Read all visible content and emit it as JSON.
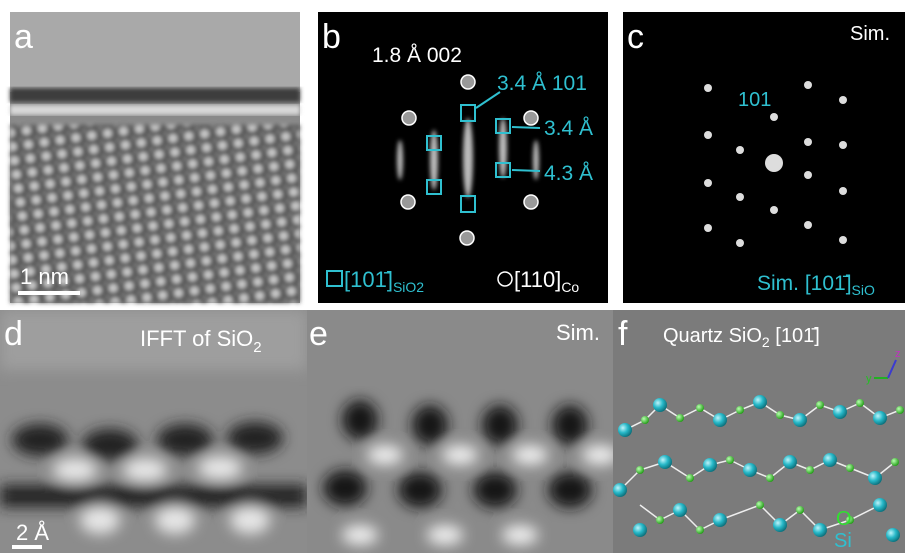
{
  "panels": {
    "a": {
      "label": "a",
      "scale_bar": "1 nm"
    },
    "b": {
      "label": "b",
      "spot_002": "1.8 Å 002",
      "spot_101": "3.4 Å 101",
      "spacing_1": "3.4 Å",
      "spacing_2": "4.3 Å",
      "legend_sio2": {
        "text": "[101̄]",
        "sub": "SiO2"
      },
      "legend_co": {
        "text": "[110]",
        "sub": "Co"
      }
    },
    "c": {
      "label": "c",
      "tag": "Sim.",
      "index": "101",
      "caption": {
        "text": "Sim. [101̄]",
        "sub": "SiO"
      }
    },
    "d": {
      "label": "d",
      "title": {
        "text": "IFFT of SiO",
        "sub": "2"
      },
      "scale_bar": "2 Å"
    },
    "e": {
      "label": "e",
      "tag": "Sim."
    },
    "f": {
      "label": "f",
      "title": {
        "pre": "Quartz SiO",
        "sub": "2",
        "post": " [101̄]"
      },
      "axis_y": "y",
      "axis_z": "z",
      "legend_o": "O",
      "legend_si": "Si"
    }
  }
}
